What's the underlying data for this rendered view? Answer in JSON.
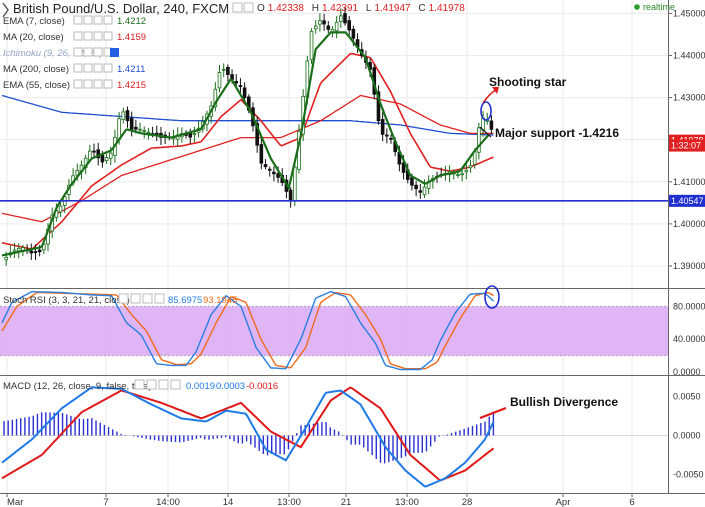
{
  "header": {
    "title": "British Pound/U.S. Dollar, 240, FXCM",
    "ohlc": [
      {
        "key": "O",
        "value": "1.42338"
      },
      {
        "key": "H",
        "value": "1.42391"
      },
      {
        "key": "L",
        "value": "1.41947"
      },
      {
        "key": "C",
        "value": "1.41978"
      }
    ],
    "realtime": "realtime"
  },
  "legend": [
    {
      "label": "EMA (7, close)",
      "value": "1.4212",
      "color": "#1a6e1a"
    },
    {
      "label": "MA (20, close)",
      "value": "1.4159",
      "color": "#e02020"
    },
    {
      "label": "Ichimoku (9, 26, 52, 26)",
      "value": "",
      "color": "#9aa6c8"
    },
    {
      "label": "MA (200, close)",
      "value": "1.4211",
      "color": "#1f4fd0"
    },
    {
      "label": "EMA (55, close)",
      "value": "1.4215",
      "color": "#e02020"
    }
  ],
  "price_axis": {
    "ticks": [
      "1.45000",
      "1.44000",
      "1.43000",
      "1.41000",
      "1.40000",
      "1.39000"
    ],
    "tags": [
      {
        "value": 1.41978,
        "text": "1.41978",
        "color": "#e02020"
      },
      {
        "value": 1.4186,
        "text": "1:32:07",
        "color": "#e02020"
      },
      {
        "value": 1.40547,
        "text": "1.40547",
        "color": "#1f2fd0"
      }
    ]
  },
  "stoch": {
    "label": "Stoch RSI (3, 3, 21, 21, close)",
    "k_value": "85.6975",
    "d_value": "93.1945",
    "ticks": [
      "80.0000",
      "40.0000",
      "0.0000"
    ],
    "band": [
      20,
      80
    ]
  },
  "macd": {
    "label": "MACD (12, 26, close, 9, false, true)",
    "values": [
      "0.0019",
      "0.0003",
      "-0.0016"
    ],
    "ticks": [
      "0.0050",
      "0.0000",
      "-0.0050"
    ]
  },
  "x_axis": {
    "ticks": [
      "Mar",
      "7",
      "14:00",
      "14",
      "13:00",
      "21",
      "13:00",
      "28",
      "Apr",
      "6"
    ]
  },
  "annotations": {
    "shooting_star": "Shooting star",
    "major_support": "Major support -1.4216",
    "bullish_divergence": "Bullish Divergence"
  },
  "chart_data": {
    "type": "candlestick",
    "title": "British Pound/U.S. Dollar, 240, FXCM",
    "ylim": [
      1.385,
      1.452
    ],
    "support_level": 1.40547,
    "close_path": [
      [
        0,
        1.391
      ],
      [
        10,
        1.3935
      ],
      [
        20,
        1.3945
      ],
      [
        30,
        1.393
      ],
      [
        40,
        1.3935
      ],
      [
        50,
        1.402
      ],
      [
        60,
        1.4045
      ],
      [
        70,
        1.411
      ],
      [
        80,
        1.414
      ],
      [
        90,
        1.418
      ],
      [
        100,
        1.4145
      ],
      [
        110,
        1.417
      ],
      [
        120,
        1.4275
      ],
      [
        130,
        1.4225
      ],
      [
        140,
        1.4225
      ],
      [
        150,
        1.4215
      ],
      [
        160,
        1.4205
      ],
      [
        170,
        1.4205
      ],
      [
        180,
        1.4215
      ],
      [
        190,
        1.4205
      ],
      [
        200,
        1.4235
      ],
      [
        210,
        1.428
      ],
      [
        220,
        1.4375
      ],
      [
        230,
        1.4345
      ],
      [
        240,
        1.4325
      ],
      [
        250,
        1.4255
      ],
      [
        260,
        1.4145
      ],
      [
        270,
        1.4125
      ],
      [
        280,
        1.4105
      ],
      [
        290,
        1.4055
      ],
      [
        300,
        1.4255
      ],
      [
        310,
        1.4455
      ],
      [
        320,
        1.4485
      ],
      [
        330,
        1.4455
      ],
      [
        340,
        1.4495
      ],
      [
        350,
        1.4455
      ],
      [
        360,
        1.4405
      ],
      [
        370,
        1.4365
      ],
      [
        380,
        1.4215
      ],
      [
        390,
        1.4205
      ],
      [
        400,
        1.4135
      ],
      [
        410,
        1.4095
      ],
      [
        420,
        1.4075
      ],
      [
        430,
        1.4105
      ],
      [
        440,
        1.4115
      ],
      [
        450,
        1.4125
      ],
      [
        460,
        1.4115
      ],
      [
        470,
        1.4135
      ],
      [
        475,
        1.4175
      ],
      [
        480,
        1.4245
      ],
      [
        485,
        1.4255
      ],
      [
        490,
        1.4235
      ],
      [
        495,
        1.4198
      ]
    ],
    "ema7_path": [
      [
        0,
        1.3925
      ],
      [
        20,
        1.3935
      ],
      [
        40,
        1.3945
      ],
      [
        55,
        1.404
      ],
      [
        70,
        1.4095
      ],
      [
        90,
        1.4155
      ],
      [
        110,
        1.4175
      ],
      [
        125,
        1.4225
      ],
      [
        140,
        1.4215
      ],
      [
        170,
        1.4205
      ],
      [
        200,
        1.4225
      ],
      [
        215,
        1.429
      ],
      [
        230,
        1.4345
      ],
      [
        250,
        1.4265
      ],
      [
        270,
        1.4155
      ],
      [
        288,
        1.4085
      ],
      [
        300,
        1.421
      ],
      [
        315,
        1.4415
      ],
      [
        330,
        1.4455
      ],
      [
        345,
        1.4455
      ],
      [
        365,
        1.4395
      ],
      [
        380,
        1.4285
      ],
      [
        395,
        1.4195
      ],
      [
        410,
        1.4115
      ],
      [
        425,
        1.4095
      ],
      [
        440,
        1.4115
      ],
      [
        460,
        1.4125
      ],
      [
        475,
        1.4175
      ],
      [
        490,
        1.4215
      ]
    ],
    "ma20_path": [
      [
        0,
        1.3955
      ],
      [
        30,
        1.394
      ],
      [
        60,
        1.4005
      ],
      [
        90,
        1.409
      ],
      [
        120,
        1.414
      ],
      [
        150,
        1.418
      ],
      [
        180,
        1.4185
      ],
      [
        200,
        1.4195
      ],
      [
        220,
        1.4255
      ],
      [
        240,
        1.4295
      ],
      [
        260,
        1.4245
      ],
      [
        280,
        1.4185
      ],
      [
        300,
        1.4205
      ],
      [
        320,
        1.4335
      ],
      [
        350,
        1.4405
      ],
      [
        370,
        1.4395
      ],
      [
        390,
        1.4315
      ],
      [
        410,
        1.4215
      ],
      [
        430,
        1.4135
      ],
      [
        450,
        1.4125
      ],
      [
        470,
        1.4135
      ],
      [
        494,
        1.4159
      ]
    ],
    "ema55_path": [
      [
        0,
        1.4025
      ],
      [
        40,
        1.4005
      ],
      [
        80,
        1.4055
      ],
      [
        120,
        1.4115
      ],
      [
        160,
        1.4145
      ],
      [
        200,
        1.4175
      ],
      [
        240,
        1.4205
      ],
      [
        280,
        1.4205
      ],
      [
        320,
        1.4245
      ],
      [
        360,
        1.4305
      ],
      [
        400,
        1.4285
      ],
      [
        440,
        1.4235
      ],
      [
        470,
        1.4215
      ],
      [
        494,
        1.4215
      ]
    ],
    "ma200_path": [
      [
        0,
        1.4305
      ],
      [
        60,
        1.4265
      ],
      [
        120,
        1.4255
      ],
      [
        180,
        1.4245
      ],
      [
        240,
        1.4245
      ],
      [
        300,
        1.4245
      ],
      [
        350,
        1.4245
      ],
      [
        400,
        1.4235
      ],
      [
        450,
        1.4215
      ],
      [
        494,
        1.4211
      ]
    ],
    "stoch_k_path": [
      [
        0,
        60
      ],
      [
        10,
        85
      ],
      [
        30,
        98
      ],
      [
        60,
        97
      ],
      [
        90,
        94
      ],
      [
        110,
        93
      ],
      [
        125,
        60
      ],
      [
        140,
        45
      ],
      [
        155,
        10
      ],
      [
        170,
        8
      ],
      [
        185,
        8
      ],
      [
        195,
        25
      ],
      [
        210,
        70
      ],
      [
        225,
        93
      ],
      [
        240,
        80
      ],
      [
        255,
        30
      ],
      [
        270,
        5
      ],
      [
        285,
        4
      ],
      [
        300,
        40
      ],
      [
        315,
        90
      ],
      [
        330,
        98
      ],
      [
        345,
        92
      ],
      [
        360,
        60
      ],
      [
        375,
        35
      ],
      [
        385,
        8
      ],
      [
        400,
        3
      ],
      [
        420,
        3
      ],
      [
        432,
        15
      ],
      [
        440,
        38
      ],
      [
        455,
        72
      ],
      [
        470,
        95
      ],
      [
        485,
        96
      ],
      [
        494,
        86
      ]
    ],
    "stoch_d_path": [
      [
        0,
        50
      ],
      [
        15,
        80
      ],
      [
        35,
        97
      ],
      [
        60,
        96
      ],
      [
        90,
        95
      ],
      [
        115,
        94
      ],
      [
        130,
        70
      ],
      [
        145,
        50
      ],
      [
        160,
        15
      ],
      [
        175,
        9
      ],
      [
        190,
        10
      ],
      [
        200,
        22
      ],
      [
        215,
        60
      ],
      [
        230,
        92
      ],
      [
        245,
        85
      ],
      [
        260,
        40
      ],
      [
        275,
        8
      ],
      [
        290,
        5
      ],
      [
        305,
        30
      ],
      [
        320,
        85
      ],
      [
        335,
        97
      ],
      [
        350,
        94
      ],
      [
        365,
        70
      ],
      [
        380,
        40
      ],
      [
        390,
        10
      ],
      [
        405,
        4
      ],
      [
        425,
        4
      ],
      [
        437,
        12
      ],
      [
        445,
        32
      ],
      [
        460,
        65
      ],
      [
        475,
        93
      ],
      [
        488,
        97
      ],
      [
        494,
        93
      ]
    ],
    "macd_line_path": [
      [
        0,
        -0.0035
      ],
      [
        30,
        -0.0005
      ],
      [
        60,
        0.0035
      ],
      [
        90,
        0.0062
      ],
      [
        120,
        0.006
      ],
      [
        150,
        0.004
      ],
      [
        180,
        0.0022
      ],
      [
        205,
        0.0018
      ],
      [
        225,
        0.0032
      ],
      [
        245,
        0.0028
      ],
      [
        265,
        -0.0018
      ],
      [
        285,
        -0.0032
      ],
      [
        305,
        0.001
      ],
      [
        325,
        0.0055
      ],
      [
        340,
        0.0058
      ],
      [
        360,
        0.004
      ],
      [
        385,
        -0.0015
      ],
      [
        405,
        -0.0045
      ],
      [
        425,
        -0.0066
      ],
      [
        445,
        -0.0055
      ],
      [
        465,
        -0.0035
      ],
      [
        485,
        -0.0005
      ],
      [
        494,
        0.0019
      ]
    ],
    "macd_signal_path": [
      [
        0,
        -0.0055
      ],
      [
        40,
        -0.0025
      ],
      [
        80,
        0.003
      ],
      [
        120,
        0.0058
      ],
      [
        160,
        0.0042
      ],
      [
        200,
        0.0022
      ],
      [
        240,
        0.0042
      ],
      [
        270,
        0.0005
      ],
      [
        300,
        -0.0015
      ],
      [
        330,
        0.0045
      ],
      [
        350,
        0.0062
      ],
      [
        380,
        0.0035
      ],
      [
        410,
        -0.0025
      ],
      [
        440,
        -0.0058
      ],
      [
        465,
        -0.0045
      ],
      [
        494,
        -0.0016
      ]
    ]
  }
}
